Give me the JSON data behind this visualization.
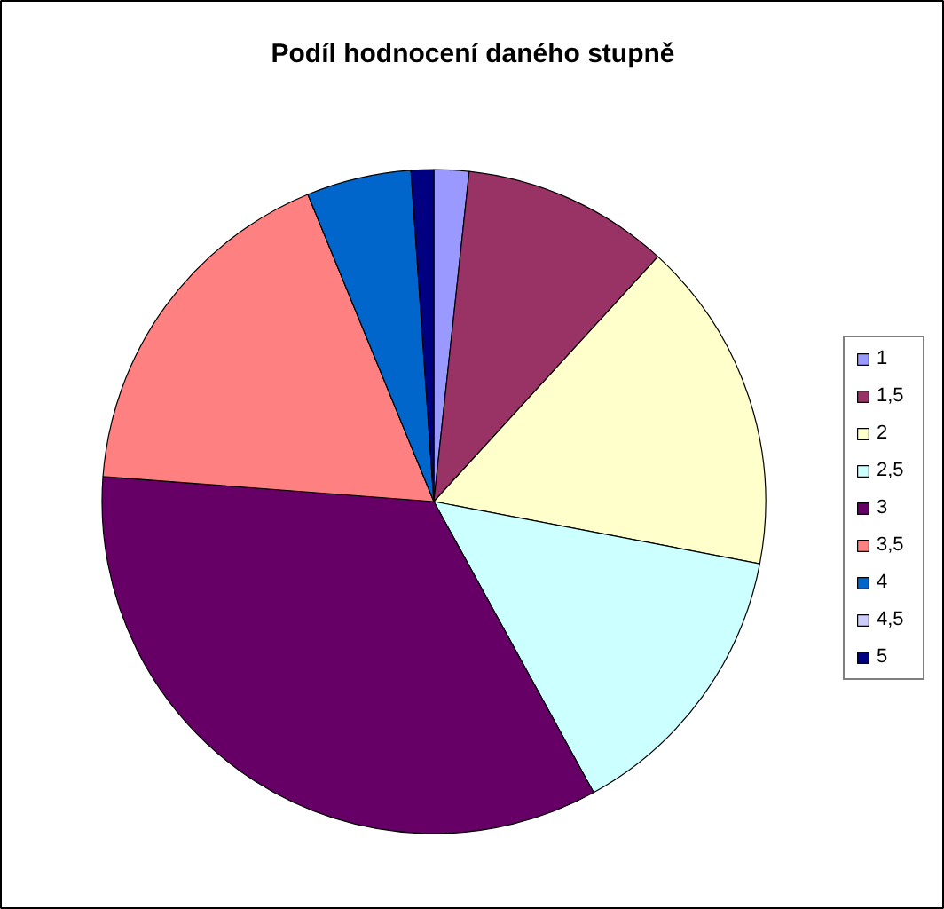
{
  "chart_data": {
    "type": "pie",
    "title": "Podíl hodnocení daného stupně",
    "categories": [
      "1",
      "1,5",
      "2",
      "2,5",
      "3",
      "3,5",
      "4",
      "4,5",
      "5"
    ],
    "values": [
      1.7,
      10.1,
      16.2,
      14.0,
      34.2,
      17.6,
      5.1,
      0,
      1.1
    ],
    "colors": [
      "#9999ff",
      "#993366",
      "#ffffcc",
      "#ccffff",
      "#660066",
      "#ff8080",
      "#0066cc",
      "#ccccff",
      "#000080"
    ],
    "legend": "right"
  }
}
